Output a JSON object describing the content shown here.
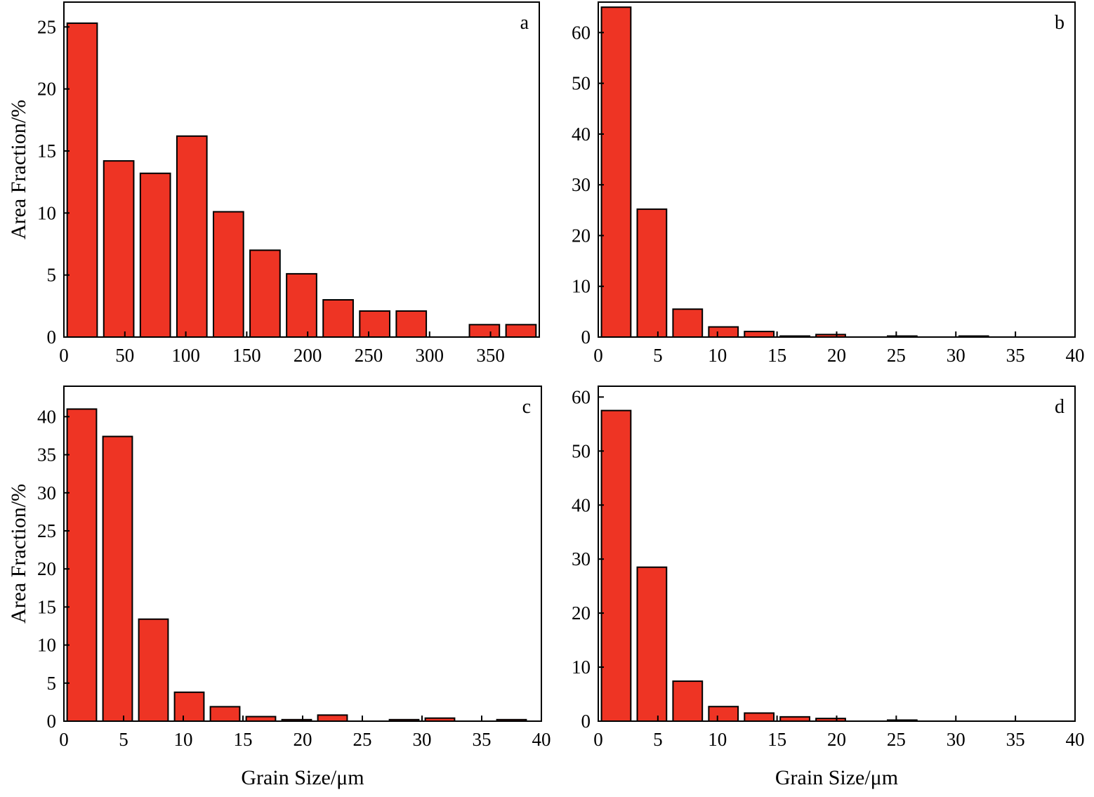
{
  "colors": {
    "bar_fill": "#ee3424",
    "bar_stroke": "#000000",
    "axis": "#000000",
    "background": "#ffffff"
  },
  "chart_data": [
    {
      "type": "bar",
      "panel_label": "a",
      "xlabel": "",
      "ylabel": "Area Fraction/%",
      "xlim": [
        0,
        390
      ],
      "ylim": [
        0,
        27
      ],
      "x_ticks": [
        0,
        50,
        100,
        150,
        200,
        250,
        300,
        350
      ],
      "y_ticks": [
        0,
        5,
        10,
        15,
        20,
        25
      ],
      "bin_width": 30,
      "bin_centers": [
        15,
        45,
        75,
        105,
        135,
        165,
        195,
        225,
        255,
        285,
        315,
        345,
        375
      ],
      "values": [
        25.3,
        14.2,
        13.2,
        16.2,
        10.1,
        7.0,
        5.1,
        3.0,
        2.1,
        2.1,
        0,
        1.0,
        1.0
      ]
    },
    {
      "type": "bar",
      "panel_label": "b",
      "xlabel": "",
      "ylabel": "",
      "xlim": [
        0,
        40
      ],
      "ylim": [
        0,
        66
      ],
      "x_ticks": [
        0,
        5,
        10,
        15,
        20,
        25,
        30,
        35,
        40
      ],
      "y_ticks": [
        0,
        10,
        20,
        30,
        40,
        50,
        60
      ],
      "bin_width": 3,
      "bin_centers": [
        1.5,
        4.5,
        7.5,
        10.5,
        13.5,
        16.5,
        19.5,
        22.5,
        25.5,
        28.5,
        31.5,
        34.5,
        37.5
      ],
      "values": [
        65.0,
        25.2,
        5.5,
        2.0,
        1.1,
        0.2,
        0.5,
        0,
        0.2,
        0,
        0.2,
        0,
        0
      ]
    },
    {
      "type": "bar",
      "panel_label": "c",
      "xlabel": "Grain Size/μm",
      "ylabel": "Area Fraction/%",
      "xlim": [
        0,
        40
      ],
      "ylim": [
        0,
        44
      ],
      "x_ticks": [
        0,
        5,
        10,
        15,
        20,
        25,
        30,
        35,
        40
      ],
      "y_ticks": [
        0,
        5,
        10,
        15,
        20,
        25,
        30,
        35,
        40
      ],
      "bin_width": 3,
      "bin_centers": [
        1.5,
        4.5,
        7.5,
        10.5,
        13.5,
        16.5,
        19.5,
        22.5,
        25.5,
        28.5,
        31.5,
        34.5,
        37.5
      ],
      "values": [
        41.0,
        37.4,
        13.4,
        3.8,
        1.9,
        0.6,
        0.2,
        0.8,
        0,
        0.2,
        0.4,
        0,
        0.2
      ]
    },
    {
      "type": "bar",
      "panel_label": "d",
      "xlabel": "Grain Size/μm",
      "ylabel": "",
      "xlim": [
        0,
        40
      ],
      "ylim": [
        0,
        62
      ],
      "x_ticks": [
        0,
        5,
        10,
        15,
        20,
        25,
        30,
        35,
        40
      ],
      "y_ticks": [
        0,
        10,
        20,
        30,
        40,
        50,
        60
      ],
      "bin_width": 3,
      "bin_centers": [
        1.5,
        4.5,
        7.5,
        10.5,
        13.5,
        16.5,
        19.5,
        22.5,
        25.5,
        28.5,
        31.5,
        34.5,
        37.5
      ],
      "values": [
        57.5,
        28.5,
        7.4,
        2.7,
        1.5,
        0.8,
        0.5,
        0,
        0.2,
        0,
        0,
        0,
        0
      ]
    }
  ]
}
